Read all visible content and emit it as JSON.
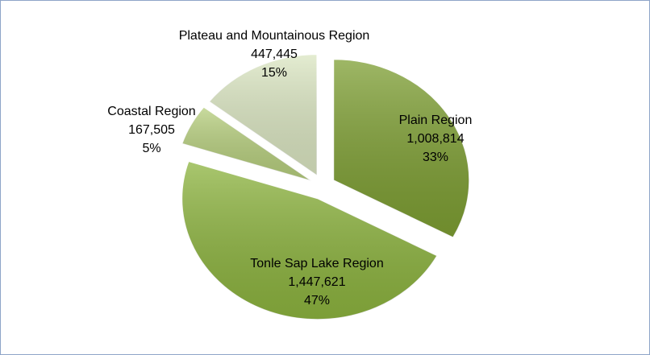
{
  "chart_data": {
    "type": "pie",
    "categories": [
      "Plain Region",
      "Tonle Sap Lake Region",
      "Coastal Region",
      "Plateau and Mountainous Region"
    ],
    "values": [
      1008814,
      1447621,
      167505,
      447445
    ],
    "value_labels": [
      "1,008,814",
      "1,447,621",
      "167,505",
      "447,445"
    ],
    "percent_labels": [
      "33%",
      "47%",
      "5%",
      "15%"
    ],
    "colors": [
      "#7e9f33",
      "#8db43f",
      "#b7cf7e",
      "#dbe6c2"
    ]
  }
}
